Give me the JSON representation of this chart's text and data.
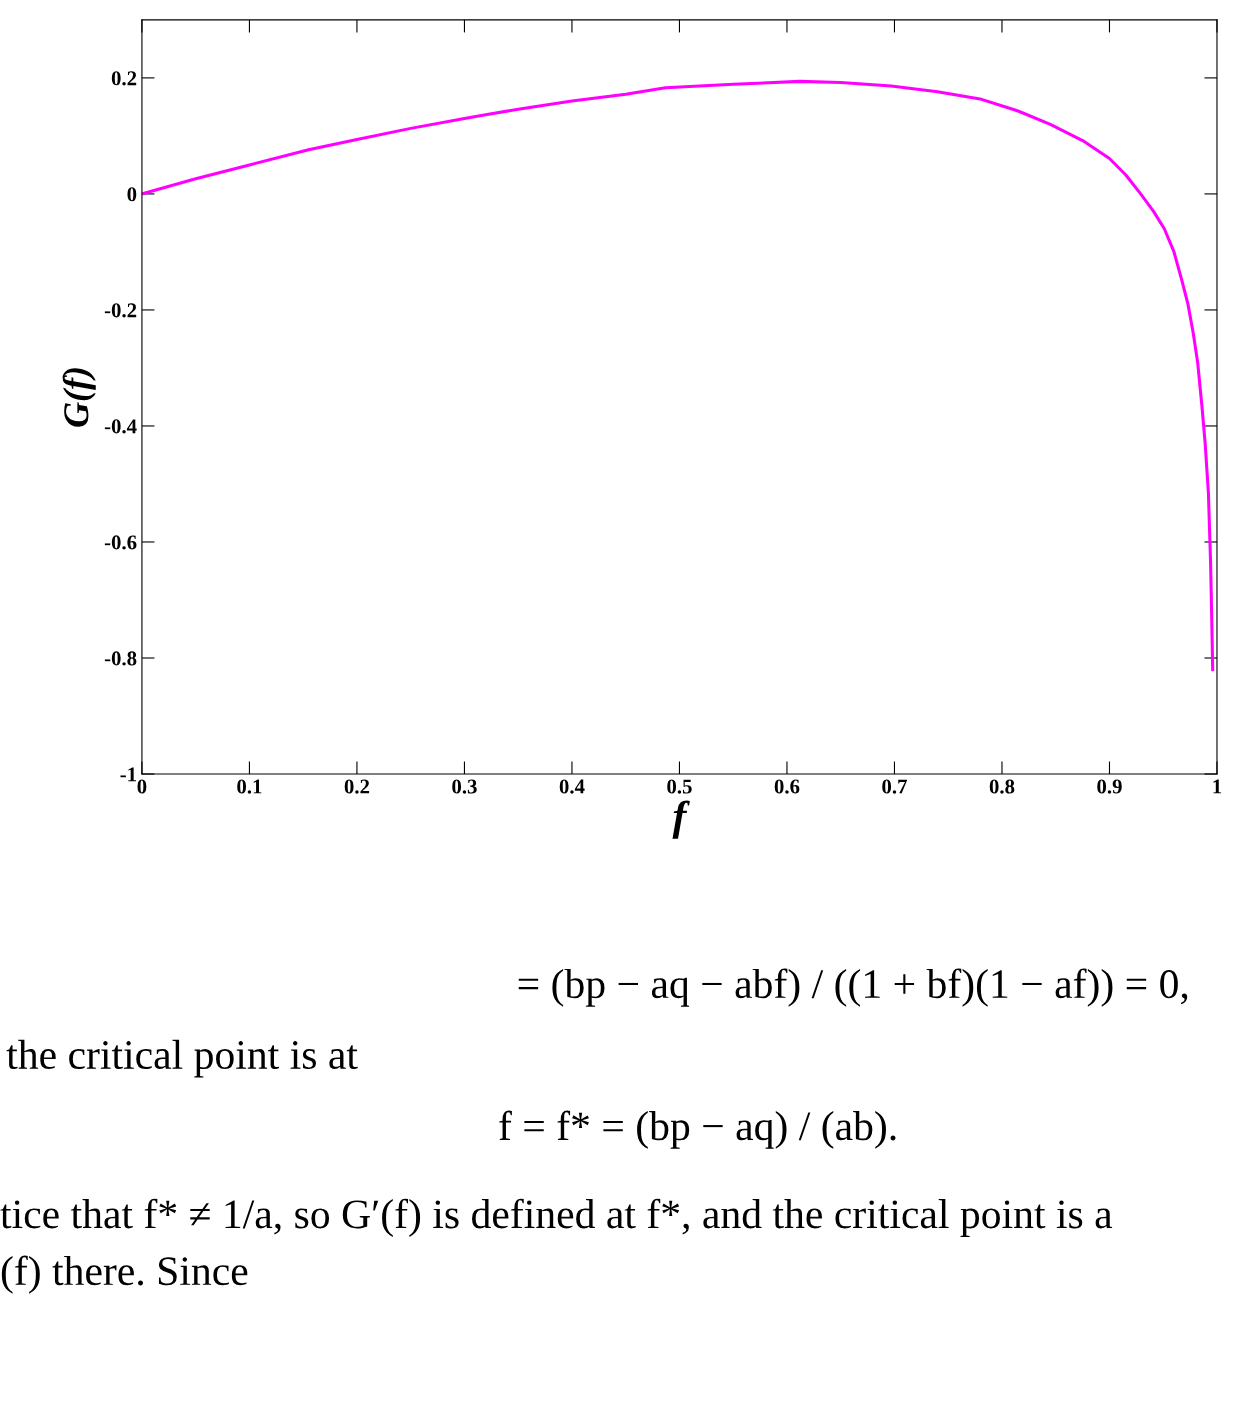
{
  "chart_data": {
    "type": "line",
    "xlabel": "f",
    "ylabel": "G(f)",
    "xlim": [
      0,
      1
    ],
    "ylim": [
      -1,
      0.3
    ],
    "xticks": [
      0,
      0.1,
      0.2,
      0.3,
      0.4,
      0.5,
      0.6,
      0.7,
      0.8,
      0.9,
      1
    ],
    "yticks": [
      -1,
      -0.8,
      -0.6,
      -0.4,
      -0.2,
      0,
      0.2
    ],
    "grid": false,
    "legend": false,
    "marker": "none",
    "line_style": "solid",
    "series": [
      {
        "color": "#ff00ff",
        "x": [
          0,
          0.05,
          0.1,
          0.155,
          0.2,
          0.25,
          0.3,
          0.321,
          0.35,
          0.4,
          0.45,
          0.487,
          0.55,
          0.612,
          0.65,
          0.697,
          0.74,
          0.781,
          0.815,
          0.845,
          0.875,
          0.9,
          0.915,
          0.929,
          0.941,
          0.951,
          0.96,
          0.967,
          0.973,
          0.978,
          0.982,
          0.986,
          0.989,
          0.992,
          0.994,
          0.995,
          0.996
        ],
        "values": [
          0,
          0.026,
          0.05,
          0.076,
          0.094,
          0.113,
          0.13,
          0.137,
          0.146,
          0.16,
          0.172,
          0.183,
          0.189,
          0.194,
          0.192,
          0.186,
          0.176,
          0.163,
          0.143,
          0.12,
          0.092,
          0.061,
          0.033,
          0.0,
          -0.03,
          -0.06,
          -0.1,
          -0.147,
          -0.19,
          -0.241,
          -0.29,
          -0.366,
          -0.43,
          -0.515,
          -0.633,
          -0.72,
          -0.82
        ]
      }
    ],
    "annotations": [
      "= (bp − aq − abf) / ((1 + bf)(1 − af)) = 0,",
      "the critical point is at",
      "f = f* = (bp − aq) / (ab).",
      "tice that f* ≠ 1/a, so G′(f) is defined at f*, and the critical point is a",
      "(f) there. Since"
    ]
  }
}
